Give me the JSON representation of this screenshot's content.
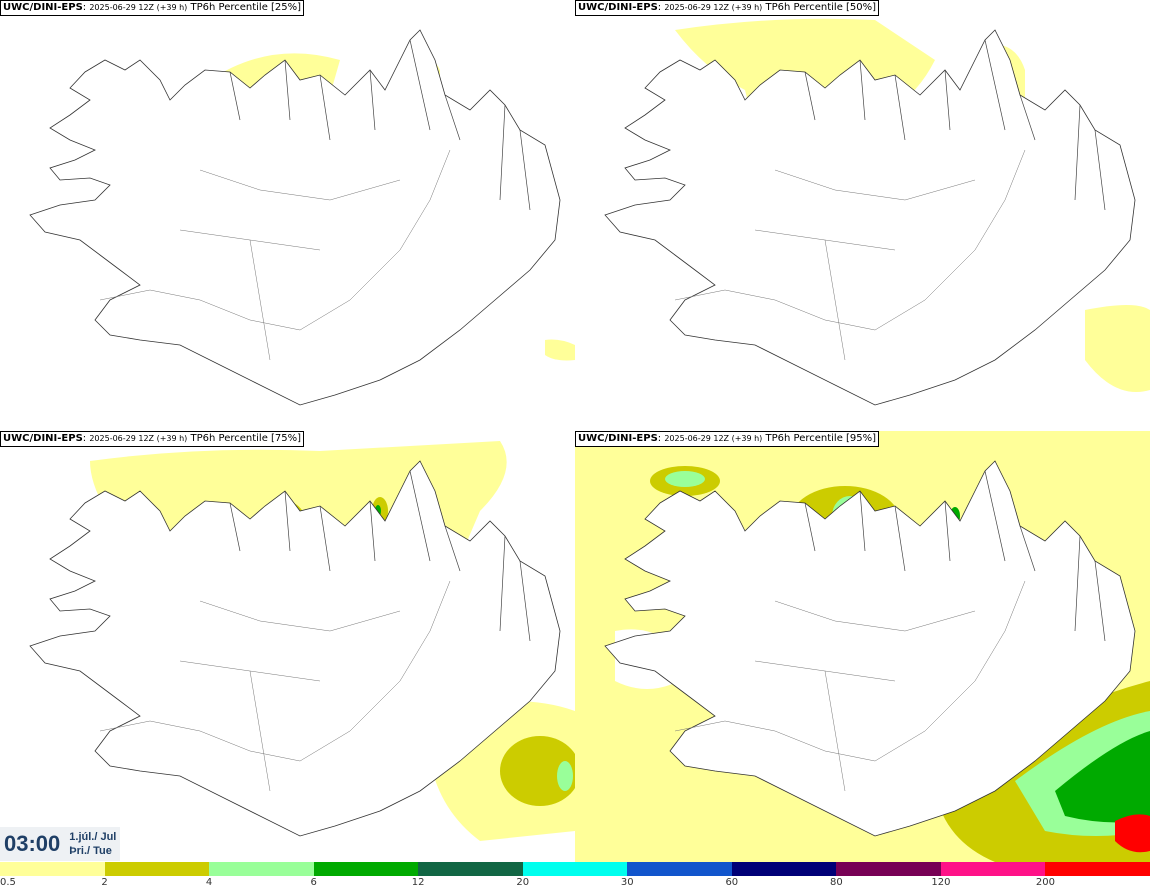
{
  "panels": [
    {
      "model": "UWC/DINI-EPS",
      "meta": "2025-06-29 12Z (+39 h)",
      "product": "TP6h Percentile [25%]"
    },
    {
      "model": "UWC/DINI-EPS",
      "meta": "2025-06-29 12Z (+39 h)",
      "product": "TP6h Percentile [50%]"
    },
    {
      "model": "UWC/DINI-EPS",
      "meta": "2025-06-29 12Z (+39 h)",
      "product": "TP6h Percentile [75%]"
    },
    {
      "model": "UWC/DINI-EPS",
      "meta": "2025-06-29 12Z (+39 h)",
      "product": "TP6h Percentile [95%]"
    }
  ],
  "valid_time": {
    "clock": "03:00",
    "date_line": "1.júl./ Jul",
    "day_line": "Þri./ Tue"
  },
  "legend": {
    "colors": [
      "#ffff99",
      "#cccc00",
      "#99ff99",
      "#00aa00",
      "#116644",
      "#00ffee",
      "#1155cc",
      "#000077",
      "#770055",
      "#ff1188",
      "#ff0000"
    ],
    "ticks": [
      "0.5",
      "2",
      "4",
      "6",
      "12",
      "20",
      "30",
      "60",
      "80",
      "120",
      "200"
    ]
  }
}
